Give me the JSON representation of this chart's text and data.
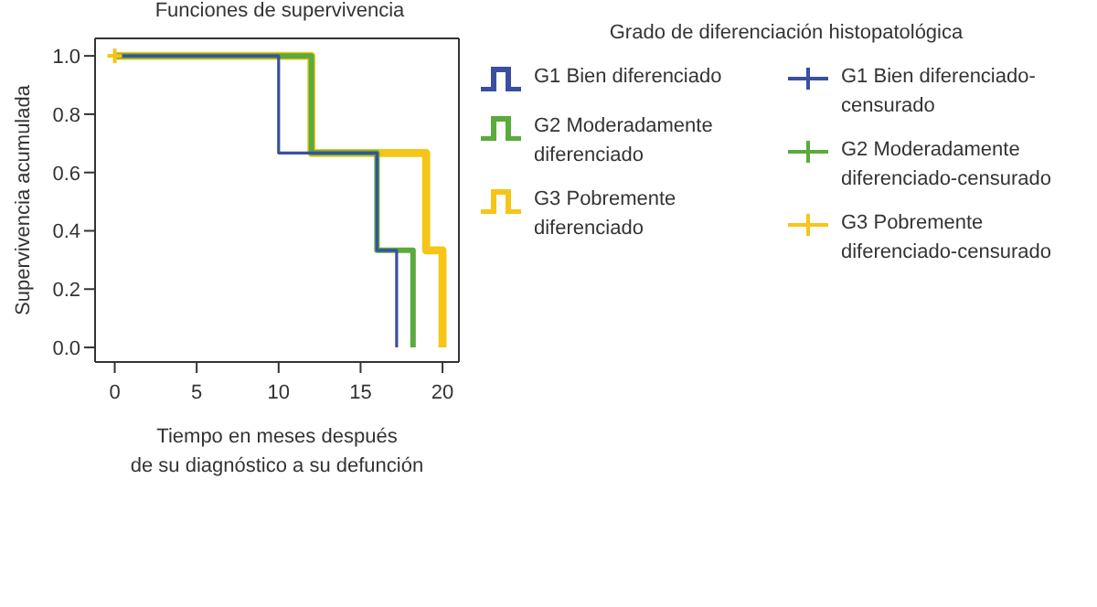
{
  "chart_data": {
    "type": "step",
    "title": "Funciones de supervivencia",
    "xlabel": "Tiempo en meses después\nde su diagnóstico a su defunción",
    "ylabel": "Supervivencia acumulada",
    "legend_title": "Grado de diferenciación histopatológica",
    "legend": "right",
    "grid": false,
    "marker": "none",
    "xlim": [
      -1.2,
      21
    ],
    "xticks": [
      0,
      5,
      10,
      15,
      20
    ],
    "ylim": [
      -0.05,
      1.06
    ],
    "yticks": [
      {
        "value": 0,
        "label": "0.0"
      },
      {
        "value": 0.2,
        "label": "0.2"
      },
      {
        "value": 0.4,
        "label": "0.4"
      },
      {
        "value": 0.6,
        "label": "0.6"
      },
      {
        "value": 0.8,
        "label": "0.8"
      },
      {
        "value": 1,
        "label": "1.0"
      }
    ],
    "series": [
      {
        "name": "G1 Bien diferenciado",
        "color": "#3a4fa0",
        "x": [
          0,
          10,
          16,
          17.2
        ],
        "values": [
          1,
          0.667,
          0.333,
          0
        ]
      },
      {
        "name": "G2 Moderadamente diferenciado",
        "color": "#5aaa3c",
        "x": [
          0,
          12,
          16,
          18.2
        ],
        "values": [
          1,
          0.667,
          0.333,
          0
        ]
      },
      {
        "name": "G3 Pobremente diferenciado",
        "color": "#f5c518",
        "x": [
          0,
          12,
          19,
          20
        ],
        "values": [
          1,
          0.667,
          0.333,
          0
        ]
      },
      {
        "name": "G1 Bien diferenciado-censurado",
        "type": "scatter",
        "marker": "cross",
        "color": "#3a4fa0"
      },
      {
        "name": "G2 Moderadamente diferenciado-censurado",
        "type": "scatter",
        "marker": "cross",
        "color": "#5aaa3c"
      },
      {
        "name": "G3 Pobremente diferenciado-censurado",
        "type": "scatter",
        "marker": "cross",
        "color": "#f5c518",
        "x": [
          0
        ],
        "values": [
          1
        ]
      }
    ]
  }
}
